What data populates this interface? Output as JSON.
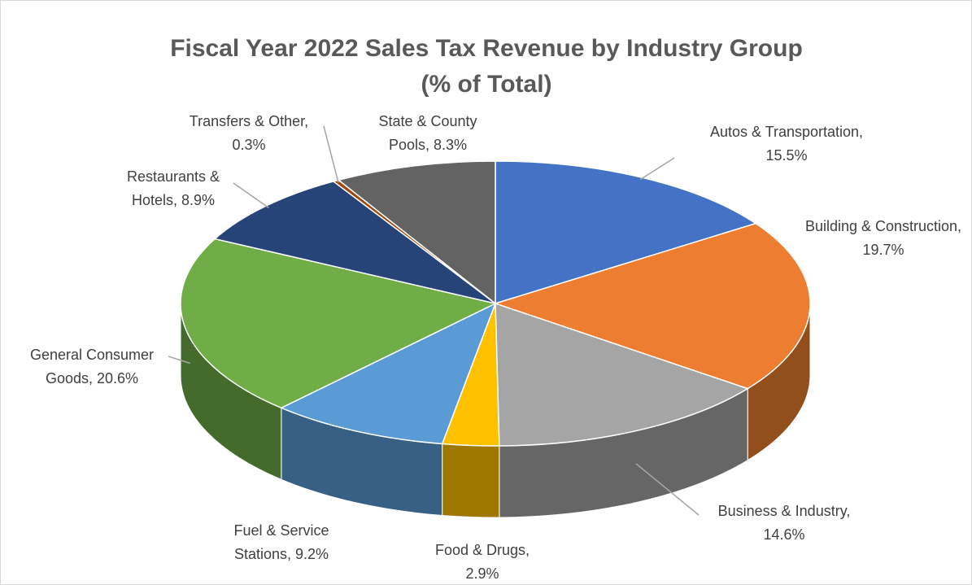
{
  "chart_data": {
    "type": "pie",
    "title": [
      "Fiscal Year 2022 Sales Tax Revenue by Industry Group",
      "(% of Total)"
    ],
    "values": [
      15.5,
      19.7,
      14.6,
      2.9,
      9.2,
      20.6,
      8.9,
      0.3,
      8.3
    ],
    "value_labels": [
      "Autos & Transportation, 15.5%",
      "Building & Construction, 19.7%",
      "Business & Industry, 14.6%",
      "Food & Drugs, 2.9%",
      "Fuel & Service Stations, 9.2%",
      "General Consumer Goods, 20.6%",
      "Restaurants & Hotels, 8.9%",
      "Transfers & Other, 0.3%",
      "State & County Pools, 8.3%"
    ],
    "colors": [
      "#4472c4",
      "#ed7d31",
      "#a5a5a5",
      "#ffc000",
      "#5b9bd5",
      "#70ad47",
      "#264478",
      "#9e480e",
      "#636363"
    ]
  }
}
